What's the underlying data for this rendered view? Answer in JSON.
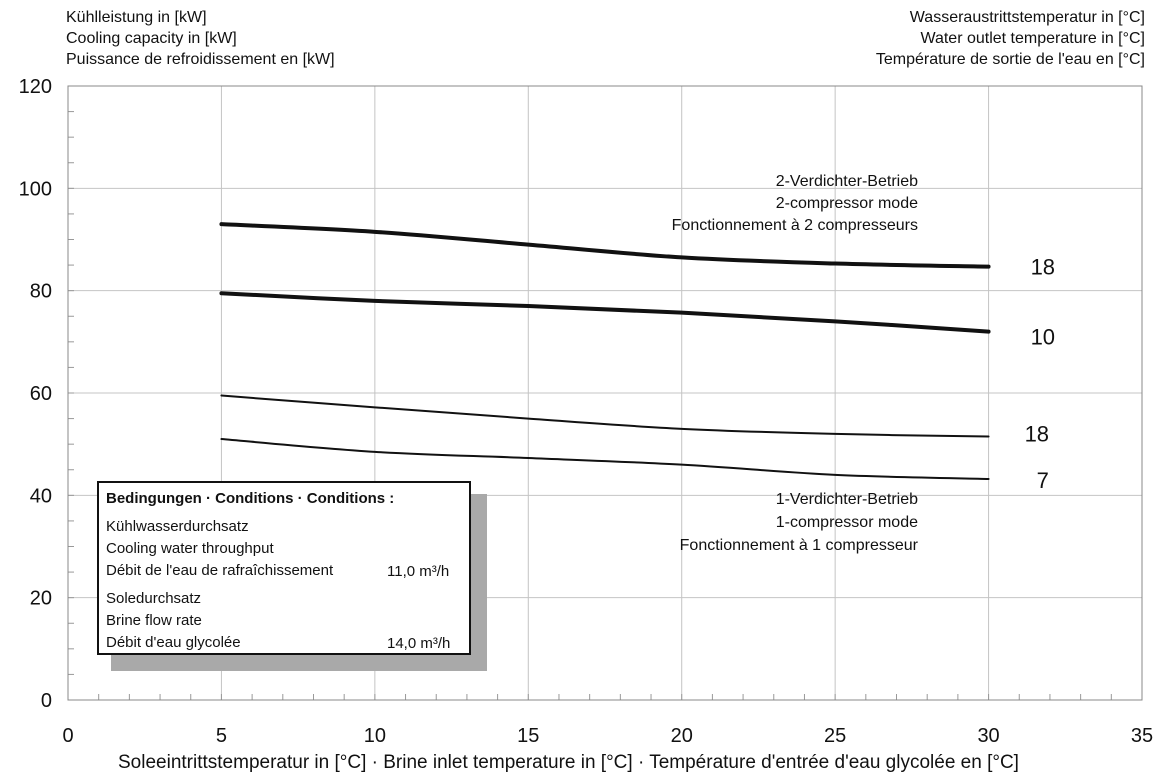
{
  "header_left": [
    "Kühlleistung in [kW]",
    "Cooling capacity in [kW]",
    "Puissance de refroidissement en [kW]"
  ],
  "header_right": [
    "Wasseraustrittstemperatur in [°C]",
    "Water outlet temperature in [°C]",
    "Température de sortie de l'eau en [°C]"
  ],
  "conditions": {
    "title": "Bedingungen · Conditions · Conditions :",
    "cooling_water": [
      "Kühlwasserdurchsatz",
      "Cooling water throughput",
      "Débit de l'eau de rafraîchissement"
    ],
    "cooling_water_value": "11,0 m³/h",
    "brine": [
      "Soledurchsatz",
      "Brine flow rate",
      "Débit d'eau glycolée"
    ],
    "brine_value": "14,0 m³/h"
  },
  "mode_labels": {
    "two": [
      "2-Verdichter-Betrieb",
      "2-compressor mode",
      "Fonctionnement à 2 compresseurs"
    ],
    "one": [
      "1-Verdichter-Betrieb",
      "1-compressor mode",
      "Fonctionnement à 1 compresseur"
    ]
  },
  "chart_data": {
    "type": "line",
    "xlabel": "Soleeintrittstemperatur in [°C] · Brine inlet temperature in [°C] · Température d'entrée d'eau glycolée en [°C]",
    "ylabel": "Kühlleistung in [kW]",
    "xlim": [
      0,
      35
    ],
    "ylim": [
      0,
      120
    ],
    "xticks": [
      0,
      5,
      10,
      15,
      20,
      25,
      30,
      35
    ],
    "yticks": [
      0,
      20,
      40,
      60,
      80,
      100,
      120
    ],
    "grid": true,
    "series": [
      {
        "name": "18",
        "mode": "2-compressor",
        "x": [
          5,
          10,
          15,
          20,
          25,
          30
        ],
        "y": [
          93,
          91.5,
          89,
          86.5,
          85.3,
          84.7
        ]
      },
      {
        "name": "10",
        "mode": "2-compressor",
        "x": [
          5,
          10,
          15,
          20,
          25,
          30
        ],
        "y": [
          79.5,
          78,
          77,
          75.7,
          74,
          72
        ]
      },
      {
        "name": "18",
        "mode": "1-compressor",
        "x": [
          5,
          10,
          15,
          20,
          25,
          30
        ],
        "y": [
          59.5,
          57.2,
          55,
          53,
          52,
          51.5
        ]
      },
      {
        "name": "7",
        "mode": "1-compressor",
        "x": [
          5,
          10,
          15,
          20,
          25,
          30
        ],
        "y": [
          51,
          48.5,
          47.3,
          46,
          44,
          43.2
        ]
      }
    ]
  }
}
